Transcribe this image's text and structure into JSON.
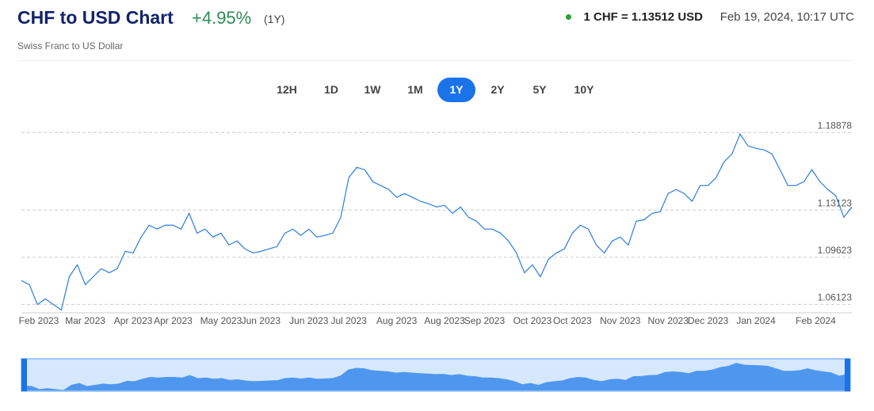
{
  "header": {
    "title": "CHF to USD Chart",
    "change": "+4.95%",
    "period": "(1Y)",
    "subtitle": "Swiss Franc to US Dollar",
    "rate": "1 CHF = 1.13512 USD",
    "timestamp": "Feb 19, 2024, 10:17 UTC"
  },
  "ranges": [
    "12H",
    "1D",
    "1W",
    "1M",
    "1Y",
    "2Y",
    "5Y",
    "10Y"
  ],
  "active_range_index": 4,
  "chart_data": {
    "type": "line",
    "categories": [
      null,
      null,
      "Feb 2023",
      null,
      null,
      null,
      null,
      null,
      "Mar 2023",
      null,
      null,
      null,
      null,
      null,
      "Apr 2023",
      null,
      null,
      null,
      null,
      "Apr 2023",
      null,
      null,
      null,
      null,
      null,
      "May 2023",
      null,
      null,
      null,
      null,
      "Jun 2023",
      null,
      null,
      null,
      null,
      null,
      "Jun 2023",
      null,
      null,
      null,
      null,
      "Jul 2023",
      null,
      null,
      null,
      null,
      null,
      "Aug 2023",
      null,
      null,
      null,
      null,
      null,
      "Aug 2023",
      null,
      null,
      null,
      null,
      "Sep 2023",
      null,
      null,
      null,
      null,
      null,
      "Oct 2023",
      null,
      null,
      null,
      null,
      "Oct 2023",
      null,
      null,
      null,
      null,
      null,
      "Nov 2023",
      null,
      null,
      null,
      null,
      null,
      "Nov 2023",
      null,
      null,
      null,
      null,
      "Dec 2023",
      null,
      null,
      null,
      null,
      null,
      "Jan 2024",
      null,
      null,
      null,
      null,
      null,
      null,
      null,
      null,
      null,
      "Feb 2024",
      null,
      null
    ],
    "series": [
      {
        "name": "CHF/USD",
        "color": "#2b7de0",
        "values": [
          1.0789,
          1.0759,
          1.0612,
          1.0653,
          1.0612,
          1.0571,
          1.0818,
          1.0906,
          1.0759,
          1.0818,
          1.0877,
          1.0847,
          1.0877,
          1.1006,
          1.0994,
          1.1112,
          1.12,
          1.1171,
          1.12,
          1.12,
          1.1171,
          1.1288,
          1.1141,
          1.1171,
          1.1112,
          1.1141,
          1.1053,
          1.1083,
          1.1024,
          1.0994,
          1.1006,
          1.1024,
          1.1041,
          1.1141,
          1.1171,
          1.1124,
          1.1171,
          1.1112,
          1.1124,
          1.1141,
          1.1259,
          1.1553,
          1.1629,
          1.1612,
          1.1523,
          1.1494,
          1.1465,
          1.1406,
          1.1435,
          1.1406,
          1.1377,
          1.1359,
          1.1335,
          1.1347,
          1.1288,
          1.1335,
          1.1259,
          1.1229,
          1.1171,
          1.1171,
          1.1141,
          1.1083,
          1.0994,
          1.0847,
          1.0906,
          1.0818,
          1.0947,
          1.0994,
          1.1024,
          1.1141,
          1.12,
          1.1171,
          1.1053,
          1.0994,
          1.1083,
          1.1112,
          1.1053,
          1.1229,
          1.1241,
          1.1288,
          1.13,
          1.1435,
          1.1465,
          1.1435,
          1.1377,
          1.1494,
          1.1494,
          1.1553,
          1.167,
          1.1729,
          1.1876,
          1.1788,
          1.177,
          1.1759,
          1.1729,
          1.1612,
          1.1494,
          1.1494,
          1.1523,
          1.1612,
          1.1523,
          1.1465,
          1.1418,
          1.1259,
          1.1335
        ]
      }
    ],
    "ylim": [
      1.055,
      1.196
    ],
    "yticks": [
      1.06123,
      1.09623,
      1.13123,
      1.18878
    ],
    "grid": true
  }
}
